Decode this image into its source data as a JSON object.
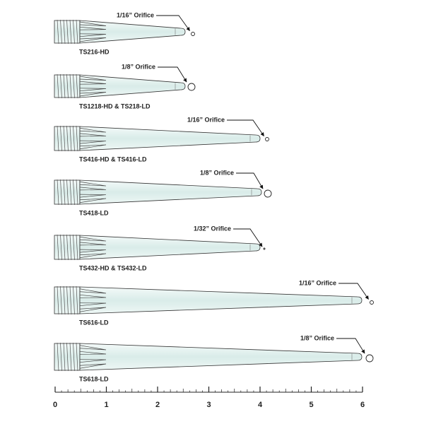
{
  "tips": [
    {
      "label": "TS216-HD",
      "orifice": "1/16” Orifice"
    },
    {
      "label": "TS1218-HD & TS218-LD",
      "orifice": "1/8” Orifice"
    },
    {
      "label": "TS416-HD & TS416-LD",
      "orifice": "1/16” Orifice"
    },
    {
      "label": "TS418-LD",
      "orifice": "1/8” Orifice"
    },
    {
      "label": "TS432-HD & TS432-LD",
      "orifice": "1/32” Orifice"
    },
    {
      "label": "TS616-LD",
      "orifice": "1/16” Orifice"
    },
    {
      "label": "TS618-LD",
      "orifice": "1/8” Orifice"
    }
  ],
  "ruler": {
    "labels": [
      "0",
      "1",
      "2",
      "3",
      "4",
      "5",
      "6"
    ]
  }
}
